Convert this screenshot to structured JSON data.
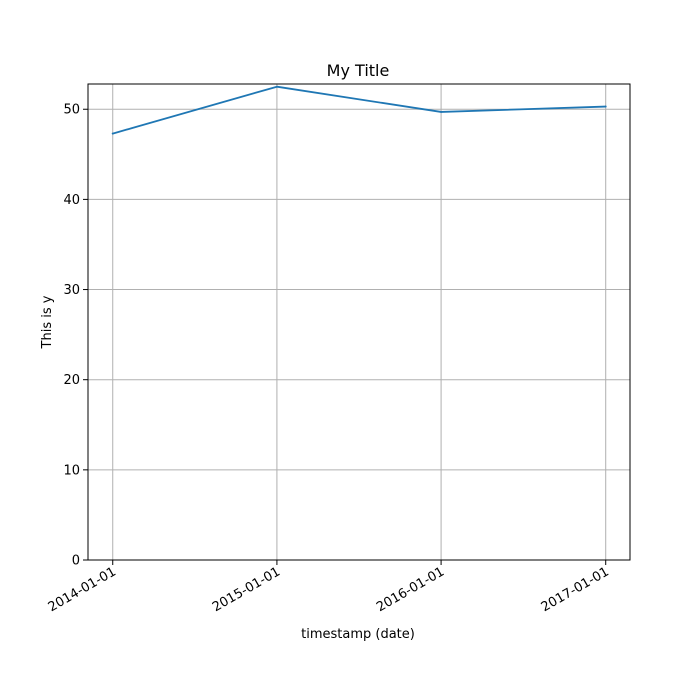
{
  "chart_data": {
    "type": "line",
    "title": "My Title",
    "xlabel": "timestamp (date)",
    "ylabel": "This is y",
    "x": [
      "2014-01-01",
      "2015-01-01",
      "2016-01-01",
      "2017-01-01"
    ],
    "series": [
      {
        "values": [
          47.3,
          52.5,
          49.7,
          50.3
        ],
        "color": "#1f77b4"
      }
    ],
    "ylim": [
      0,
      52.8
    ],
    "xlim": [
      "2013-11-07",
      "2017-02-24"
    ],
    "yticks": [
      0,
      10,
      20,
      30,
      40,
      50
    ],
    "xticks": [
      "2014-01-01",
      "2015-01-01",
      "2016-01-01",
      "2017-01-01"
    ],
    "x_scale": "date",
    "grid": true,
    "legend": "none"
  }
}
